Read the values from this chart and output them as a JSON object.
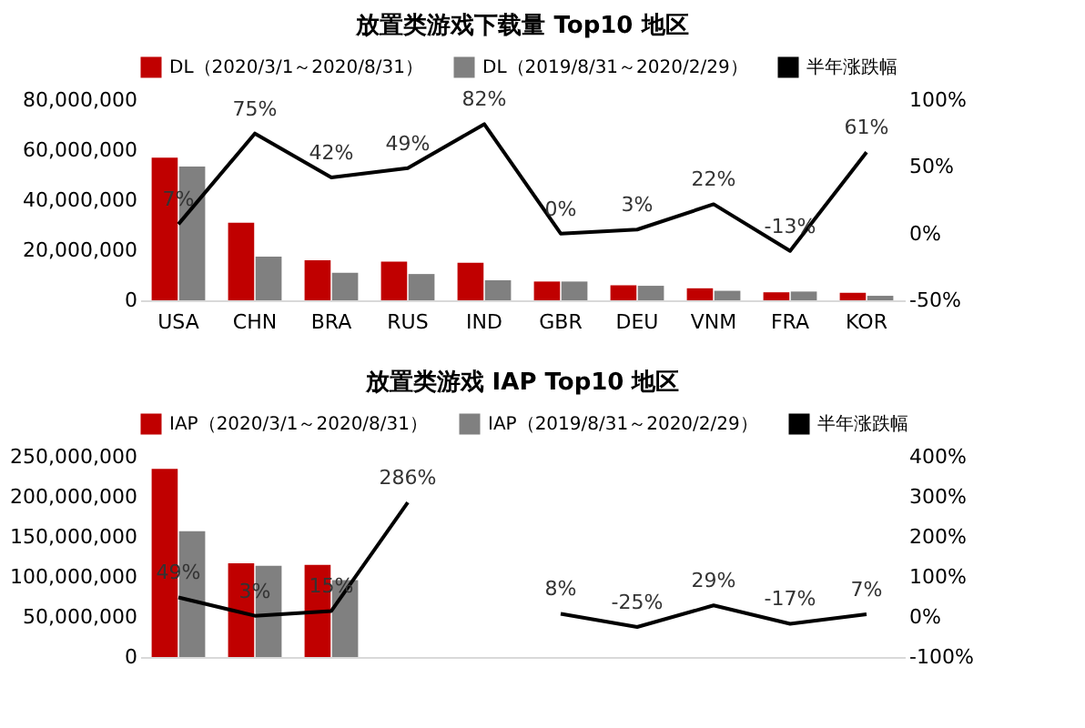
{
  "chart_data": [
    {
      "type": "bar",
      "title": "放置类游戏下载量 Top10 地区",
      "categories": [
        "USA",
        "CHN",
        "BRA",
        "RUS",
        "IND",
        "GBR",
        "DEU",
        "VNM",
        "FRA",
        "KOR"
      ],
      "series": [
        {
          "name": "DL（2020/3/1～2020/8/31）",
          "color": "#c00000",
          "values": [
            57000000,
            31000000,
            16000000,
            15500000,
            15000000,
            7500000,
            6000000,
            4800000,
            3200000,
            3000000
          ]
        },
        {
          "name": "DL（2019/8/31～2020/2/29）",
          "color": "#808080",
          "values": [
            53500000,
            17500000,
            11000000,
            10500000,
            8000000,
            7500000,
            5800000,
            3800000,
            3500000,
            1800000
          ]
        },
        {
          "name": "半年涨跌幅",
          "type": "line",
          "axis": "y2",
          "color": "#000000",
          "values": [
            7,
            75,
            42,
            49,
            82,
            0,
            3,
            22,
            -13,
            61
          ],
          "value_labels": [
            "7%",
            "75%",
            "42%",
            "49%",
            "82%",
            "0%",
            "3%",
            "22%",
            "-13%",
            "61%"
          ]
        }
      ],
      "ylim": [
        0,
        80000000
      ],
      "yticks": [
        0,
        {
          "value": 20000000,
          "label": "20,000,000"
        },
        {
          "value": 40000000,
          "label": "40,000,000"
        },
        {
          "value": 60000000,
          "label": "60,000,000"
        },
        {
          "value": 80000000,
          "label": "80,000,000"
        }
      ],
      "y2lim": [
        -50,
        100
      ],
      "y2ticks": [
        {
          "value": -50,
          "label": "-50%"
        },
        {
          "value": 0,
          "label": "0%"
        },
        {
          "value": 50,
          "label": "50%"
        },
        {
          "value": 100,
          "label": "100%"
        }
      ],
      "legend": "top",
      "grid": false
    },
    {
      "type": "bar",
      "title": "放置类游戏 IAP Top10 地区",
      "categories": [
        null,
        null,
        null,
        null,
        null,
        null,
        null,
        null,
        null,
        null
      ],
      "series": [
        {
          "name": "IAP（2020/3/1～2020/8/31）",
          "color": "#c00000",
          "values": [
            235000000,
            117000000,
            115000000,
            null,
            null,
            null,
            null,
            null,
            null,
            null
          ]
        },
        {
          "name": "IAP（2019/8/31～2020/2/29）",
          "color": "#808080",
          "values": [
            157000000,
            114000000,
            96000000,
            null,
            null,
            null,
            null,
            null,
            null,
            null
          ]
        },
        {
          "name": "半年涨跌幅",
          "type": "line",
          "axis": "y2",
          "color": "#000000",
          "values": [
            49,
            3,
            15,
            286,
            null,
            8,
            -25,
            29,
            -17,
            7
          ],
          "value_labels": [
            "49%",
            "3%",
            "15%",
            "286%",
            null,
            "8%",
            "-25%",
            "29%",
            "-17%",
            "7%"
          ]
        }
      ],
      "ylim": [
        0,
        250000000
      ],
      "yticks": [
        0,
        {
          "value": 50000000,
          "label": "50,000,000"
        },
        {
          "value": 100000000,
          "label": "100,000,000"
        },
        {
          "value": 150000000,
          "label": "150,000,000"
        },
        {
          "value": 200000000,
          "label": "200,000,000"
        },
        {
          "value": 250000000,
          "label": "250,000,000"
        }
      ],
      "y2lim": [
        -100,
        400
      ],
      "y2ticks": [
        {
          "value": -100,
          "label": "-100%"
        },
        {
          "value": 0,
          "label": "0%"
        },
        {
          "value": 100,
          "label": "100%"
        },
        {
          "value": 200,
          "label": "200%"
        },
        {
          "value": 300,
          "label": "300%"
        },
        {
          "value": 400,
          "label": "400%"
        }
      ],
      "legend": "top",
      "grid": false
    }
  ]
}
